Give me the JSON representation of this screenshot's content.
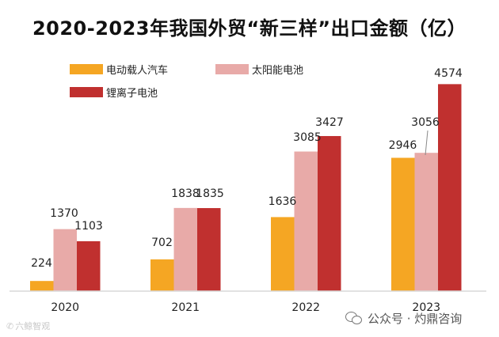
{
  "chart_data": {
    "type": "bar",
    "title": "2020-2023年我国外贸“新三样”出口金额（亿）",
    "categories": [
      "2020",
      "2021",
      "2022",
      "2023"
    ],
    "series": [
      {
        "name": "电动载人汽车",
        "color": "#f5a623",
        "values": [
          224,
          702,
          1636,
          2946
        ]
      },
      {
        "name": "太阳能电池",
        "color": "#e8aaa8",
        "values": [
          1370,
          1838,
          3085,
          3056
        ]
      },
      {
        "name": "锂离子电池",
        "color": "#c0302f",
        "values": [
          1103,
          1835,
          3427,
          4574
        ]
      }
    ],
    "ylim": [
      0,
      5000
    ],
    "grid": false,
    "legend": "top-left"
  },
  "watermark": {
    "left_text": "六鲸智观",
    "right_text": "公众号 · 灼鼎咨询"
  }
}
